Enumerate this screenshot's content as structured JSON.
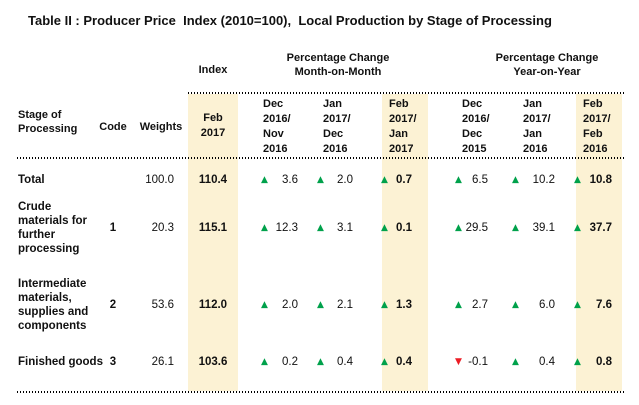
{
  "title": "Table II : Producer Price  Index (2010=100),  Local Production by Stage of Processing",
  "colors": {
    "highlight": "#FCF2D4",
    "up_green": "#00A14B",
    "down_red": "#EC1C24",
    "text": "#111111"
  },
  "groups": {
    "index_label": "Index",
    "mom_label": "Percentage Change\nMonth-on-Month",
    "yoy_label": "Percentage Change\nYear-on-Year"
  },
  "columns": {
    "stage_label": "Stage of\nProcessing",
    "code_label": "Code",
    "weights_label": "Weights",
    "index_period": "Feb\n2017",
    "mom_periods": [
      "Dec\n2016/\nNov\n2016",
      "Jan\n2017/\nDec\n2016",
      "Feb\n2017/\nJan\n2017"
    ],
    "yoy_periods": [
      "Dec\n2016/\nDec\n2015",
      "Jan\n2017/\nJan\n2016",
      "Feb\n2017/\nFeb\n2016"
    ]
  },
  "rows": [
    {
      "stage": "Total",
      "code": "",
      "weights": "100.0",
      "index": "110.4",
      "mom": [
        {
          "dir": "up",
          "value": "3.6"
        },
        {
          "dir": "up",
          "value": "2.0"
        },
        {
          "dir": "up",
          "value": "0.7"
        }
      ],
      "yoy": [
        {
          "dir": "up",
          "value": "6.5"
        },
        {
          "dir": "up",
          "value": "10.2"
        },
        {
          "dir": "up",
          "value": "10.8"
        }
      ]
    },
    {
      "stage": "Crude\nmaterials for\nfurther\nprocessing",
      "code": "1",
      "weights": "20.3",
      "index": "115.1",
      "mom": [
        {
          "dir": "up",
          "value": "12.3"
        },
        {
          "dir": "up",
          "value": "3.1"
        },
        {
          "dir": "up",
          "value": "0.1"
        }
      ],
      "yoy": [
        {
          "dir": "up",
          "value": "29.5"
        },
        {
          "dir": "up",
          "value": "39.1"
        },
        {
          "dir": "up",
          "value": "37.7"
        }
      ]
    },
    {
      "stage": "Intermediate\nmaterials,\nsupplies and\ncomponents",
      "code": "2",
      "weights": "53.6",
      "index": "112.0",
      "mom": [
        {
          "dir": "up",
          "value": "2.0"
        },
        {
          "dir": "up",
          "value": "2.1"
        },
        {
          "dir": "up",
          "value": "1.3"
        }
      ],
      "yoy": [
        {
          "dir": "up",
          "value": "2.7"
        },
        {
          "dir": "up",
          "value": "6.0"
        },
        {
          "dir": "up",
          "value": "7.6"
        }
      ]
    },
    {
      "stage": "Finished goods",
      "code": "3",
      "weights": "26.1",
      "index": "103.6",
      "mom": [
        {
          "dir": "up",
          "value": "0.2"
        },
        {
          "dir": "up",
          "value": "0.4"
        },
        {
          "dir": "up",
          "value": "0.4"
        }
      ],
      "yoy": [
        {
          "dir": "down",
          "value": "-0.1"
        },
        {
          "dir": "up",
          "value": "0.4"
        },
        {
          "dir": "up",
          "value": "0.8"
        }
      ]
    }
  ]
}
